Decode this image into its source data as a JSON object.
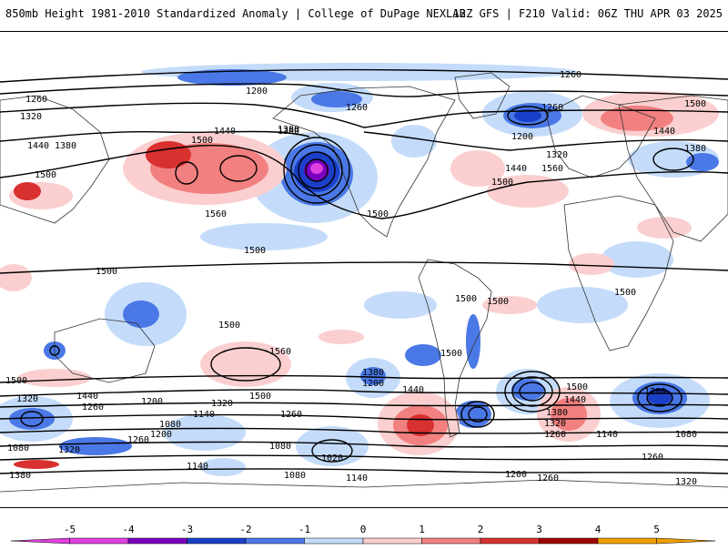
{
  "header": {
    "left": "850mb Height 1981-2010 Standardized Anomaly | College of DuPage NEXLAB",
    "right": "12Z GFS | F210 Valid: 06Z THU APR 03 2025"
  },
  "map": {
    "contour_labels": [
      "1260",
      "1200",
      "1260",
      "1320",
      "1380",
      "1260",
      "1500",
      "1260",
      "1200",
      "1320",
      "1440",
      "1380",
      "1500",
      "1440",
      "1380",
      "1440",
      "1380",
      "1500",
      "1500",
      "1560",
      "1440",
      "1560",
      "1500",
      "1500",
      "1500",
      "1500",
      "1500",
      "1500",
      "1500",
      "1500",
      "1560",
      "1380",
      "1200",
      "1440",
      "1500",
      "1500",
      "1440",
      "1380",
      "1320",
      "1260",
      "1200",
      "1080",
      "1500",
      "1440",
      "1320",
      "1260",
      "1200",
      "1140",
      "1080",
      "1320",
      "1260",
      "1080",
      "1020",
      "1140",
      "1080",
      "1200",
      "1260",
      "1140",
      "1320",
      "1200",
      "1260",
      "1320",
      "1080",
      "1140",
      "1260",
      "1380"
    ],
    "colors": {
      "m5": "#e040e0",
      "m4": "#7a00c0",
      "m3": "#1a3fc8",
      "m2": "#4a78e6",
      "m1": "#c4dcfa",
      "p1": "#fbcfcf",
      "p2": "#f28080",
      "p3": "#d93030",
      "p4": "#a00000",
      "p5": "#f0a000"
    }
  },
  "colorbar": {
    "ticks": [
      "-5",
      "-4",
      "-3",
      "-2",
      "-1",
      "0",
      "1",
      "2",
      "3",
      "4",
      "5"
    ],
    "colors": [
      "#e040e0",
      "#7a00c0",
      "#1a3fc8",
      "#4a78e6",
      "#c4dcfa",
      "#ffffff",
      "#fbcfcf",
      "#f28080",
      "#d93030",
      "#a00000",
      "#f0a000"
    ]
  }
}
